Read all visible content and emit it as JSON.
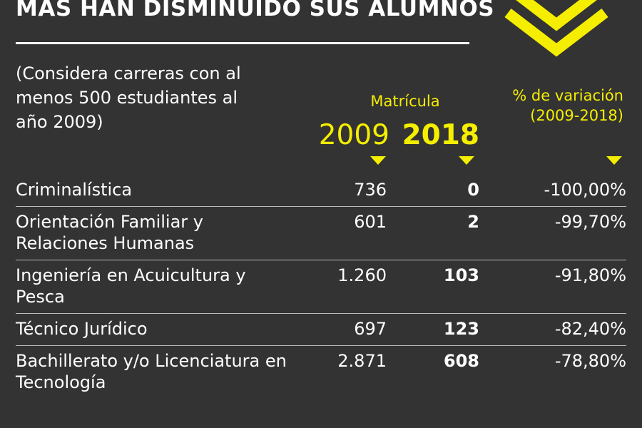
{
  "header": {
    "title": "MÁS HAN DISMINUIDO SUS ALUMNOS",
    "note": "(Considera carreras con al menos 500 estudiantes al año 2009)"
  },
  "columns": {
    "group_label": "Matrícula",
    "year_2009": "2009",
    "year_2018": "2018",
    "variation": "% de variación (2009-2018)"
  },
  "rows": [
    {
      "career": "Criminalística",
      "y2009": "736",
      "y2018": "0",
      "variation": "-100,00%"
    },
    {
      "career": "Orientación Familiar y Relaciones Humanas",
      "y2009": "601",
      "y2018": "2",
      "variation": "-99,70%"
    },
    {
      "career": "Ingeniería en Acuicultura y Pesca",
      "y2009": "1.260",
      "y2018": "103",
      "variation": "-91,80%"
    },
    {
      "career": "Técnico Jurídico",
      "y2009": "697",
      "y2018": "123",
      "variation": "-82,40%"
    },
    {
      "career": "Bachillerato y/o Licenciatura en Tecnología",
      "y2009": "2.871",
      "y2018": "608",
      "variation": "-78,80%"
    }
  ],
  "colors": {
    "background": "#333333",
    "accent_yellow": "#f5ee00",
    "text": "#ffffff"
  },
  "icons": {
    "decoration": "double-chevron-down-icon"
  }
}
